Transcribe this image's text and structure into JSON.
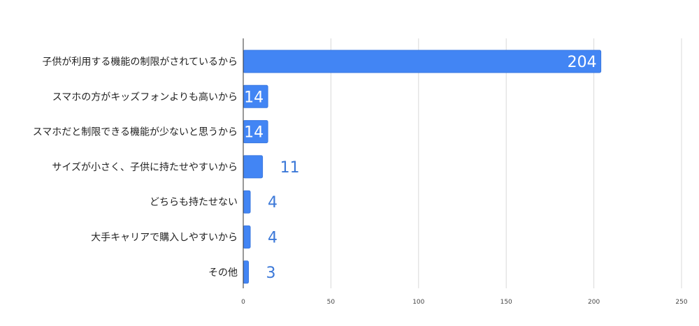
{
  "chart_data": {
    "type": "bar",
    "orientation": "horizontal",
    "categories": [
      "子供が利用する機能の制限がされているから",
      "スマホの方がキッズフォンよりも高いから",
      "スマホだと制限できる機能が少ないと思うから",
      "サイズが小さく、子供に持たせやすいから",
      "どちらも持たせない",
      "大手キャリアで購入しやすいから",
      "その他"
    ],
    "values": [
      204,
      14,
      14,
      11,
      4,
      4,
      3
    ],
    "xlim": [
      0,
      250
    ],
    "x_ticks": [
      0,
      50,
      100,
      150,
      200,
      250
    ],
    "grid": true,
    "title": "",
    "xlabel": "",
    "ylabel": "",
    "colors": {
      "bar": "#4285f4",
      "bar_edge": "#3a78e0",
      "label_inside": "#ffffff",
      "label_outside": "#3b78d8",
      "grid": "#d9d9d9",
      "axis": "#333333",
      "category_text": "#222222",
      "tick_text": "#444444"
    }
  }
}
